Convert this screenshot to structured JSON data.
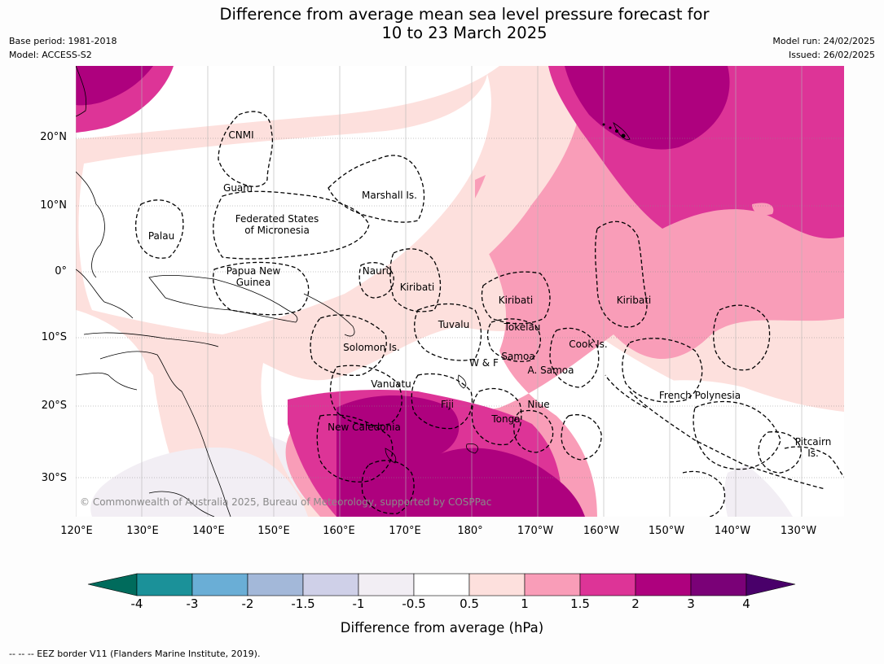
{
  "title": {
    "line1": "Difference from average mean sea level pressure forecast for",
    "line2": "10 to 23 March 2025"
  },
  "meta_left": {
    "base_period": "Base period: 1981-2018",
    "model": "Model: ACCESS-S2"
  },
  "meta_right": {
    "model_run": "Model run: 24/02/2025",
    "issued": "Issued: 26/02/2025"
  },
  "map": {
    "lat_labels": [
      "20°N",
      "10°N",
      "0°",
      "10°S",
      "20°S",
      "30°S"
    ],
    "lon_labels": [
      "120°E",
      "130°E",
      "140°E",
      "150°E",
      "160°E",
      "170°E",
      "180°",
      "170°W",
      "160°W",
      "150°W",
      "140°W",
      "130°W"
    ],
    "regions": {
      "cnmi": "CNMI",
      "guam": "Guam",
      "marshall": "Marshall Is.",
      "fsm_1": "Federated States",
      "fsm_2": "of Micronesia",
      "palau": "Palau",
      "png_1": "Papua New",
      "png_2": "Guinea",
      "nauru": "Nauru",
      "kiribati_w": "Kiribati",
      "kiribati_c": "Kiribati",
      "kiribati_e": "Kiribati",
      "tuvalu": "Tuvalu",
      "tokelau": "Tokelau",
      "solomon": "Solomon Is.",
      "cook": "Cook Is.",
      "samoa": "Samoa",
      "wf": "W & F",
      "asamoa": "A. Samoa",
      "vanuatu": "Vanuatu",
      "fiji": "Fiji",
      "niue": "Niue",
      "tonga": "Tonga",
      "new_caledonia": "New Caledonia",
      "french_polynesia": "French Polynesia",
      "pitcairn_1": "Pitcairn",
      "pitcairn_2": "Is."
    },
    "copyright": "© Commonwealth of Australia 2025, Bureau of Meteorology, supported by COSPPac"
  },
  "colorbar": {
    "tick_labels": [
      "-4",
      "-3",
      "-2",
      "-1.5",
      "-1",
      "-0.5",
      "0.5",
      "1",
      "1.5",
      "2",
      "3",
      "4"
    ],
    "colors": {
      "below_min": "#006b5c",
      "bins": [
        "#1b9199",
        "#6aaed6",
        "#a3b8d9",
        "#cfd0e8",
        "#f2eef4",
        "#ffffff",
        "#fde0dd",
        "#f99db8",
        "#dd3497",
        "#ae017e",
        "#7a0177"
      ],
      "above_max": "#49006a"
    },
    "title": "Difference from average (hPa)"
  },
  "footer": "--  --  -- EEZ border V11 (Flanders Marine Institute, 2019)."
}
